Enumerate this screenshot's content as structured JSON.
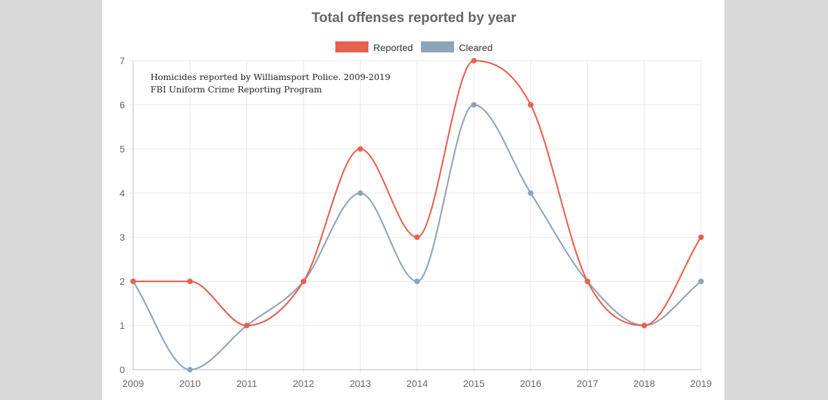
{
  "chart_data": {
    "type": "line",
    "title": "Total offenses reported by year",
    "xlabel": "",
    "ylabel": "",
    "x": [
      "2009",
      "2010",
      "2011",
      "2012",
      "2013",
      "2014",
      "2015",
      "2016",
      "2017",
      "2018",
      "2019"
    ],
    "ylim": [
      0,
      7
    ],
    "yticks": [
      "0",
      "1",
      "2",
      "3",
      "4",
      "5",
      "6",
      "7"
    ],
    "grid": true,
    "legend_position": "top-center",
    "series": [
      {
        "name": "Reported",
        "color": "#e8604e",
        "values": [
          2,
          2,
          1,
          2,
          5,
          3,
          7,
          6,
          2,
          1,
          3
        ]
      },
      {
        "name": "Cleared",
        "color": "#8ea4b8",
        "values": [
          2,
          0,
          1,
          2,
          4,
          2,
          6,
          4,
          2,
          1,
          2
        ]
      }
    ],
    "annotations": [
      "Homicides reported by Williamsport Police. 2009-2019",
      "FBI Uniform Crime Reporting Program"
    ]
  }
}
